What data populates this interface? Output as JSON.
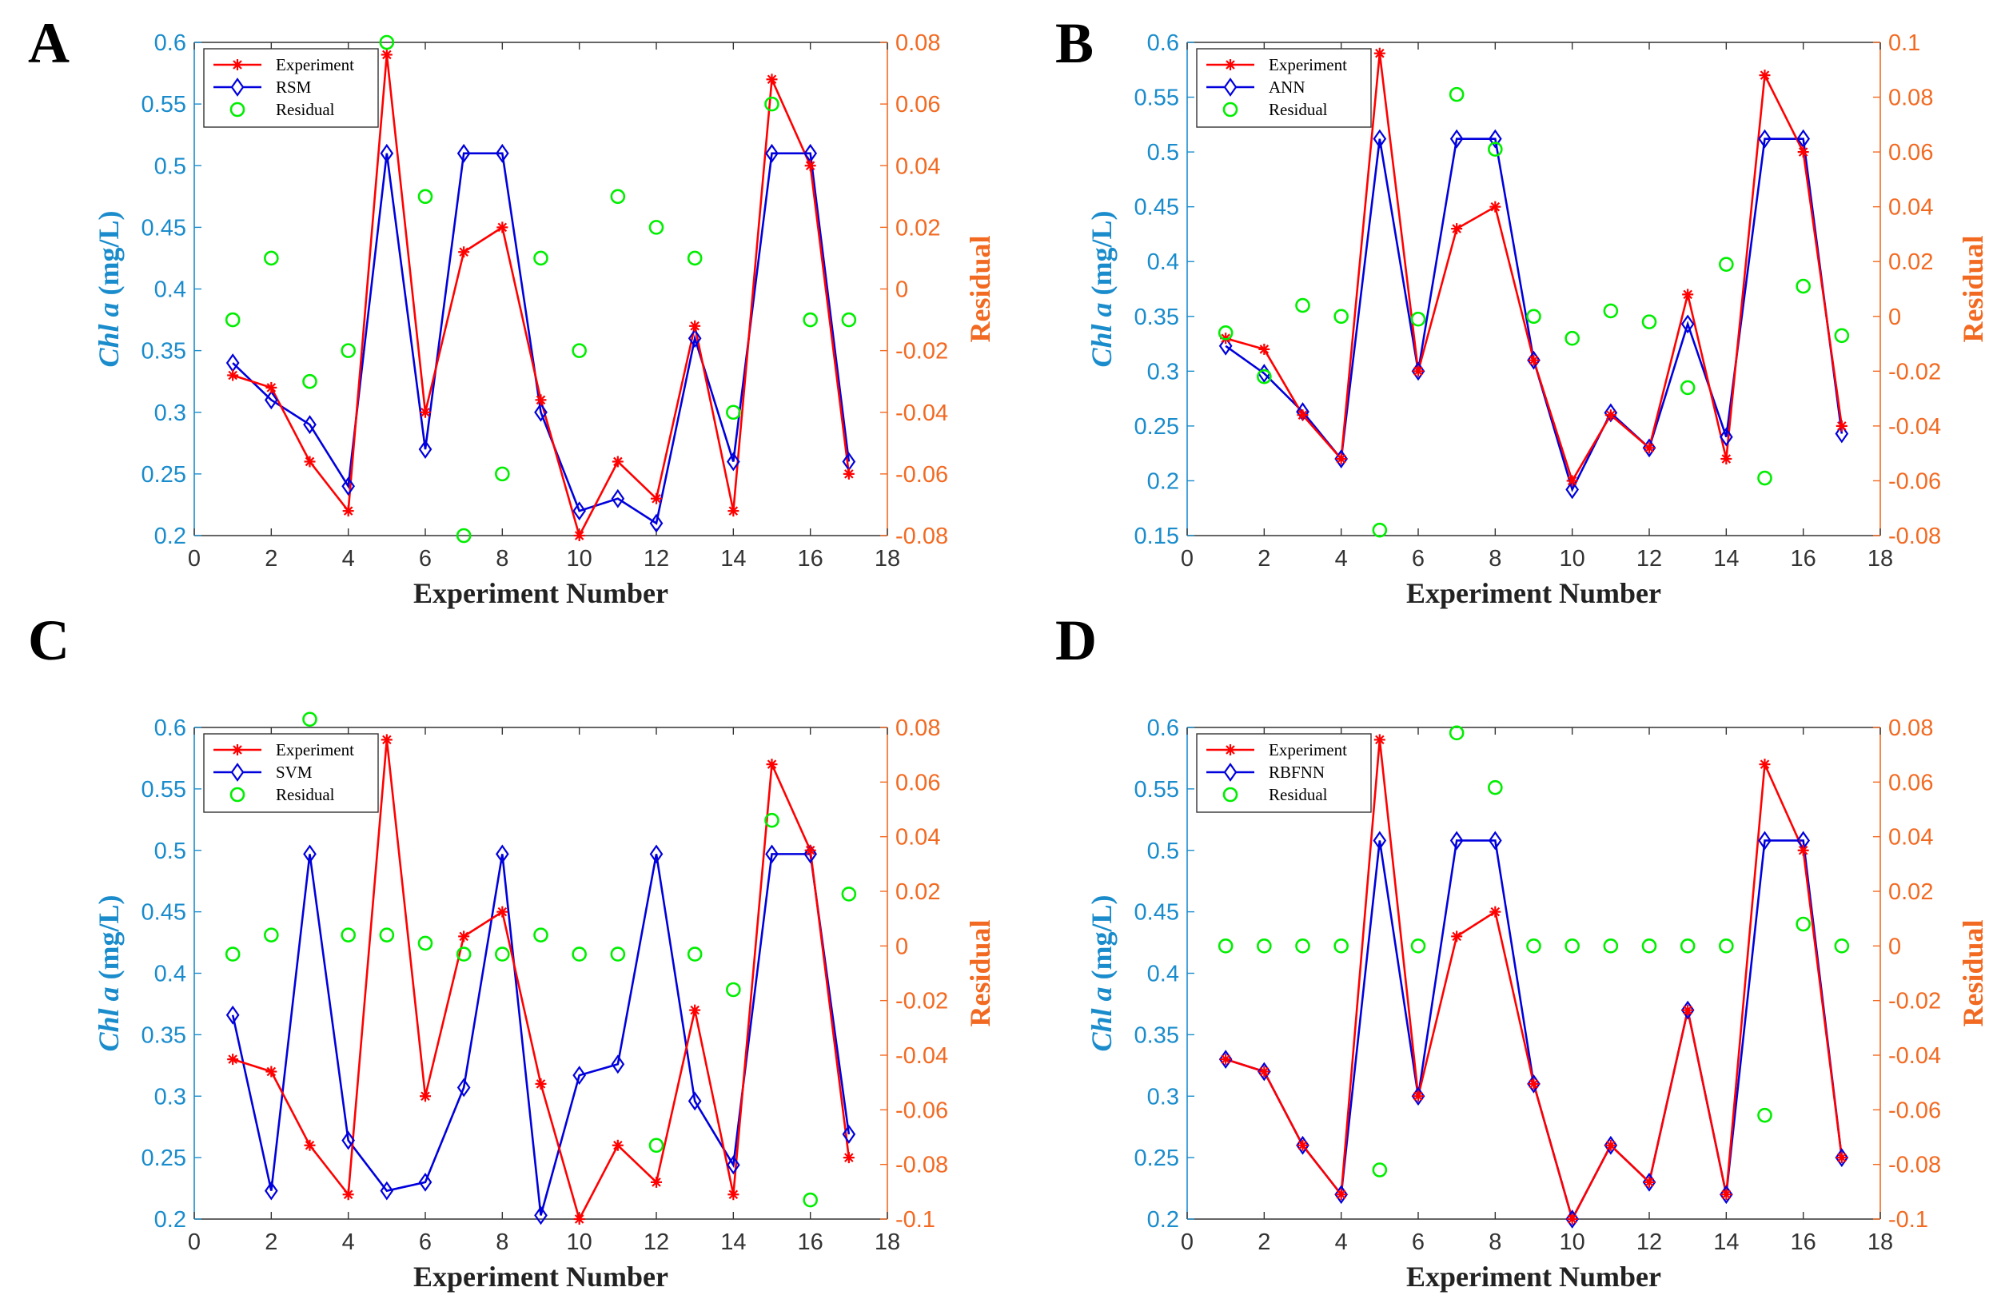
{
  "figure": {
    "xlabel": "Experiment Number",
    "ylabel_prefix": "Chl a",
    "ylabel_suffix": " (mg/L)",
    "y2label": "Residual"
  },
  "colors": {
    "experiment": "#ff0000",
    "model": "#0000dd",
    "residual": "#00ee00",
    "left_axis": "#1a8ccc",
    "right_axis": "#f26a22"
  },
  "chart_data": [
    {
      "type": "line",
      "panel": "A",
      "x": [
        1,
        2,
        3,
        4,
        5,
        6,
        7,
        8,
        9,
        10,
        11,
        12,
        13,
        14,
        15,
        16,
        17
      ],
      "xlim": [
        0,
        18
      ],
      "xticks": [
        "0",
        "2",
        "4",
        "6",
        "8",
        "10",
        "12",
        "14",
        "16",
        "18"
      ],
      "ylim": [
        0.2,
        0.6
      ],
      "yticks": [
        "0.2",
        "0.25",
        "0.3",
        "0.35",
        "0.4",
        "0.45",
        "0.5",
        "0.55",
        "0.6"
      ],
      "y2lim": [
        -0.08,
        0.08
      ],
      "y2ticks": [
        "-0.08",
        "-0.06",
        "-0.04",
        "-0.02",
        "0",
        "0.02",
        "0.04",
        "0.06",
        "0.08"
      ],
      "xlabel": "Experiment Number",
      "ylabel": "Chl a (mg/L)",
      "y2label": "Residual",
      "legend": [
        "Experiment",
        "RSM",
        "Residual"
      ],
      "series": [
        {
          "name": "Experiment",
          "axis": "left",
          "values": [
            0.33,
            0.32,
            0.26,
            0.22,
            0.59,
            0.3,
            0.43,
            0.45,
            0.31,
            0.2,
            0.26,
            0.23,
            0.37,
            0.22,
            0.57,
            0.5,
            0.25
          ]
        },
        {
          "name": "RSM",
          "axis": "left",
          "values": [
            0.34,
            0.31,
            0.29,
            0.24,
            0.51,
            0.27,
            0.51,
            0.51,
            0.3,
            0.22,
            0.23,
            0.21,
            0.36,
            0.26,
            0.51,
            0.51,
            0.26
          ]
        },
        {
          "name": "Residual",
          "axis": "right",
          "values": [
            -0.01,
            0.01,
            -0.03,
            -0.02,
            0.08,
            0.03,
            -0.08,
            -0.06,
            0.01,
            -0.02,
            0.03,
            0.02,
            0.01,
            -0.04,
            0.06,
            -0.01,
            -0.01
          ]
        }
      ]
    },
    {
      "type": "line",
      "panel": "B",
      "x": [
        1,
        2,
        3,
        4,
        5,
        6,
        7,
        8,
        9,
        10,
        11,
        12,
        13,
        14,
        15,
        16,
        17
      ],
      "xlim": [
        0,
        18
      ],
      "xticks": [
        "0",
        "2",
        "4",
        "6",
        "8",
        "10",
        "12",
        "14",
        "16",
        "18"
      ],
      "ylim": [
        0.15,
        0.6
      ],
      "yticks": [
        "0.15",
        "0.2",
        "0.25",
        "0.3",
        "0.35",
        "0.4",
        "0.45",
        "0.5",
        "0.55",
        "0.6"
      ],
      "y2lim": [
        -0.08,
        0.1
      ],
      "y2ticks": [
        "-0.08",
        "-0.06",
        "-0.04",
        "-0.02",
        "0",
        "0.02",
        "0.04",
        "0.06",
        "0.08",
        "0.1"
      ],
      "xlabel": "Experiment Number",
      "ylabel": "Chl a (mg/L)",
      "y2label": "Residual",
      "legend": [
        "Experiment",
        "ANN",
        "Residual"
      ],
      "series": [
        {
          "name": "Experiment",
          "axis": "left",
          "values": [
            0.33,
            0.32,
            0.26,
            0.22,
            0.59,
            0.3,
            0.43,
            0.45,
            0.31,
            0.2,
            0.26,
            0.23,
            0.37,
            0.22,
            0.57,
            0.5,
            0.25
          ]
        },
        {
          "name": "ANN",
          "axis": "left",
          "values": [
            0.323,
            0.298,
            0.263,
            0.22,
            0.512,
            0.3,
            0.512,
            0.512,
            0.31,
            0.192,
            0.262,
            0.23,
            0.343,
            0.24,
            0.512,
            0.512,
            0.243
          ]
        },
        {
          "name": "Residual",
          "axis": "right",
          "values": [
            -0.006,
            -0.022,
            0.004,
            0.0,
            -0.078,
            -0.001,
            0.081,
            0.061,
            0.0,
            -0.008,
            0.002,
            -0.002,
            -0.026,
            0.019,
            -0.059,
            0.011,
            -0.007
          ]
        }
      ]
    },
    {
      "type": "line",
      "panel": "C",
      "x": [
        1,
        2,
        3,
        4,
        5,
        6,
        7,
        8,
        9,
        10,
        11,
        12,
        13,
        14,
        15,
        16,
        17
      ],
      "xlim": [
        0,
        18
      ],
      "xticks": [
        "0",
        "2",
        "4",
        "6",
        "8",
        "10",
        "12",
        "14",
        "16",
        "18"
      ],
      "ylim": [
        0.2,
        0.6
      ],
      "yticks": [
        "0.2",
        "0.25",
        "0.3",
        "0.35",
        "0.4",
        "0.45",
        "0.5",
        "0.55",
        "0.6"
      ],
      "y2lim": [
        -0.1,
        0.08
      ],
      "y2ticks": [
        "-0.1",
        "-0.08",
        "-0.06",
        "-0.04",
        "-0.02",
        "0",
        "0.02",
        "0.04",
        "0.06",
        "0.08"
      ],
      "xlabel": "Experiment Number",
      "ylabel": "Chl a (mg/L)",
      "y2label": "Residual",
      "legend": [
        "Experiment",
        "SVM",
        "Residual"
      ],
      "series": [
        {
          "name": "Experiment",
          "axis": "left",
          "values": [
            0.33,
            0.32,
            0.26,
            0.22,
            0.59,
            0.3,
            0.43,
            0.45,
            0.31,
            0.2,
            0.26,
            0.23,
            0.37,
            0.22,
            0.57,
            0.5,
            0.25
          ]
        },
        {
          "name": "SVM",
          "axis": "left",
          "values": [
            0.366,
            0.223,
            0.497,
            0.264,
            0.223,
            0.23,
            0.307,
            0.497,
            0.203,
            0.317,
            0.326,
            0.497,
            0.296,
            0.244,
            0.497,
            0.497,
            0.269
          ]
        },
        {
          "name": "Residual",
          "axis": "right",
          "values": [
            -0.003,
            0.004,
            0.083,
            0.004,
            0.004,
            0.001,
            -0.003,
            -0.003,
            0.004,
            -0.003,
            -0.003,
            -0.073,
            -0.003,
            -0.016,
            0.046,
            -0.093,
            0.019
          ]
        }
      ]
    },
    {
      "type": "line",
      "panel": "D",
      "x": [
        1,
        2,
        3,
        4,
        5,
        6,
        7,
        8,
        9,
        10,
        11,
        12,
        13,
        14,
        15,
        16,
        17
      ],
      "xlim": [
        0,
        18
      ],
      "xticks": [
        "0",
        "2",
        "4",
        "6",
        "8",
        "10",
        "12",
        "14",
        "16",
        "18"
      ],
      "ylim": [
        0.2,
        0.6
      ],
      "yticks": [
        "0.2",
        "0.25",
        "0.3",
        "0.35",
        "0.4",
        "0.45",
        "0.5",
        "0.55",
        "0.6"
      ],
      "y2lim": [
        -0.1,
        0.08
      ],
      "y2ticks": [
        "-0.1",
        "-0.08",
        "-0.06",
        "-0.04",
        "-0.02",
        "0",
        "0.02",
        "0.04",
        "0.06",
        "0.08"
      ],
      "xlabel": "Experiment Number",
      "ylabel": "Chl a (mg/L)",
      "y2label": "Residual",
      "legend": [
        "Experiment",
        "RBFNN",
        "Residual"
      ],
      "series": [
        {
          "name": "Experiment",
          "axis": "left",
          "values": [
            0.33,
            0.32,
            0.26,
            0.22,
            0.59,
            0.3,
            0.43,
            0.45,
            0.31,
            0.2,
            0.26,
            0.23,
            0.37,
            0.22,
            0.57,
            0.5,
            0.25
          ]
        },
        {
          "name": "RBFNN",
          "axis": "left",
          "values": [
            0.33,
            0.32,
            0.26,
            0.22,
            0.508,
            0.3,
            0.508,
            0.508,
            0.31,
            0.2,
            0.26,
            0.23,
            0.37,
            0.22,
            0.508,
            0.508,
            0.25
          ]
        },
        {
          "name": "Residual",
          "axis": "right",
          "values": [
            0,
            0,
            0,
            0,
            -0.082,
            0,
            0.078,
            0.058,
            0,
            0,
            0,
            0,
            0,
            0,
            -0.062,
            0.008,
            0
          ]
        }
      ]
    }
  ]
}
